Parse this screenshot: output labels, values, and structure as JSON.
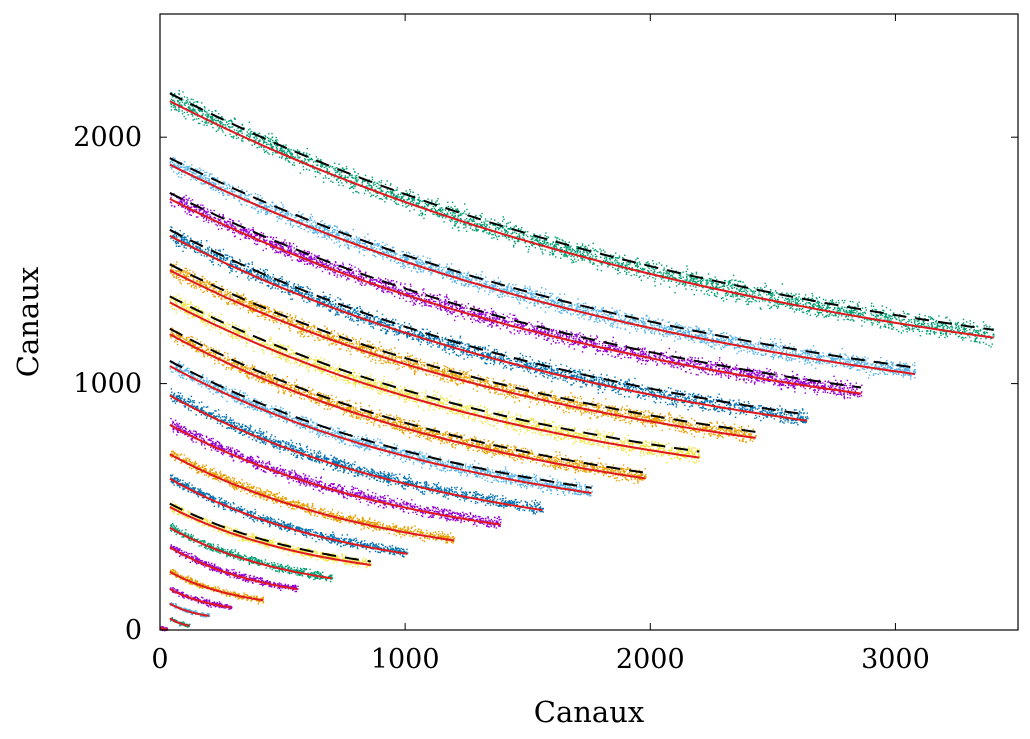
{
  "chart_data": {
    "type": "scatter",
    "xlabel": "Canaux",
    "ylabel": "Canaux",
    "xlim": [
      0,
      3500
    ],
    "ylim": [
      0,
      2500
    ],
    "xticks": [
      0,
      1000,
      2000,
      3000
    ],
    "yticks": [
      0,
      1000,
      2000
    ],
    "grid": false,
    "colors": {
      "green": "#009e73",
      "skyblue": "#56b4e9",
      "purple": "#9400d3",
      "blue": "#0072b2",
      "orange": "#e69f00",
      "yellow": "#f0e442",
      "fit": "#e0191e",
      "reference": "#000000"
    },
    "bands": [
      {
        "color": "green",
        "x": [
          40,
          3400
        ],
        "y": [
          2160,
          1200
        ],
        "width": 90,
        "dashed": true
      },
      {
        "color": "skyblue",
        "x": [
          40,
          3080
        ],
        "y": [
          1900,
          1050
        ],
        "width": 75,
        "dashed": true
      },
      {
        "color": "purple",
        "x": [
          40,
          2860
        ],
        "y": [
          1760,
          970
        ],
        "width": 70,
        "dashed": true
      },
      {
        "color": "blue",
        "x": [
          40,
          2640
        ],
        "y": [
          1610,
          860
        ],
        "width": 70,
        "dashed": true
      },
      {
        "color": "orange",
        "x": [
          40,
          2430
        ],
        "y": [
          1470,
          790
        ],
        "width": 70,
        "dashed": true
      },
      {
        "color": "yellow",
        "x": [
          40,
          2200
        ],
        "y": [
          1340,
          710
        ],
        "width": 70,
        "dashed": true
      },
      {
        "color": "orange",
        "x": [
          40,
          1980
        ],
        "y": [
          1210,
          625
        ],
        "width": 65,
        "dashed": true
      },
      {
        "color": "skyblue",
        "x": [
          40,
          1760
        ],
        "y": [
          1080,
          565
        ],
        "width": 60,
        "dashed": true
      },
      {
        "color": "blue",
        "x": [
          40,
          1560
        ],
        "y": [
          960,
          495
        ],
        "width": 55,
        "dashed": false
      },
      {
        "color": "purple",
        "x": [
          40,
          1390
        ],
        "y": [
          840,
          435
        ],
        "width": 50,
        "dashed": false
      },
      {
        "color": "orange",
        "x": [
          40,
          1200
        ],
        "y": [
          720,
          370
        ],
        "width": 45,
        "dashed": false
      },
      {
        "color": "blue",
        "x": [
          40,
          1010
        ],
        "y": [
          620,
          315
        ],
        "width": 40,
        "dashed": false
      },
      {
        "color": "yellow",
        "x": [
          40,
          860
        ],
        "y": [
          505,
          270
        ],
        "width": 40,
        "dashed": true
      },
      {
        "color": "green",
        "x": [
          40,
          700
        ],
        "y": [
          420,
          215
        ],
        "width": 35,
        "dashed": false
      },
      {
        "color": "purple",
        "x": [
          40,
          560
        ],
        "y": [
          340,
          170
        ],
        "width": 30,
        "dashed": false
      },
      {
        "color": "orange",
        "x": [
          40,
          420
        ],
        "y": [
          240,
          125
        ],
        "width": 28,
        "dashed": false
      },
      {
        "color": "purple",
        "x": [
          40,
          290
        ],
        "y": [
          170,
          95
        ],
        "width": 24,
        "dashed": false
      },
      {
        "color": "skyblue",
        "x": [
          40,
          200
        ],
        "y": [
          110,
          60
        ],
        "width": 20,
        "dashed": false
      },
      {
        "color": "green",
        "x": [
          40,
          120
        ],
        "y": [
          50,
          20
        ],
        "width": 18,
        "dashed": false
      },
      {
        "color": "purple",
        "x": [
          0,
          30
        ],
        "y": [
          12,
          5
        ],
        "width": 15,
        "dashed": false
      }
    ]
  }
}
